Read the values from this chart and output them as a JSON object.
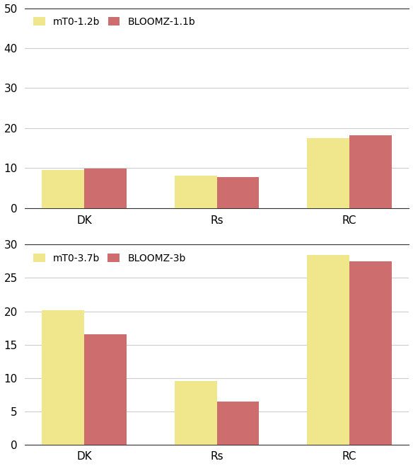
{
  "top_chart": {
    "categories": [
      "DK",
      "Rs",
      "RC"
    ],
    "series1_label": "mT0-1.2b",
    "series2_label": "BLOOMZ-1.1b",
    "series1_values": [
      9.5,
      8.2,
      17.5
    ],
    "series2_values": [
      9.9,
      7.7,
      18.2
    ],
    "ylim": [
      0,
      50
    ],
    "yticks": [
      0,
      10,
      20,
      30,
      40,
      50
    ],
    "color1": "#F0E68C",
    "color2": "#CD6D6D"
  },
  "bottom_chart": {
    "categories": [
      "DK",
      "Rs",
      "RC"
    ],
    "series1_label": "mT0-3.7b",
    "series2_label": "BLOOMZ-3b",
    "series1_values": [
      20.2,
      9.5,
      28.5
    ],
    "series2_values": [
      16.5,
      6.5,
      27.5
    ],
    "ylim": [
      0,
      30
    ],
    "yticks": [
      0,
      5,
      10,
      15,
      20,
      25,
      30
    ],
    "color1": "#F0E68C",
    "color2": "#CD6D6D"
  },
  "bar_width": 0.32,
  "tick_fontsize": 11,
  "legend_fontsize": 10,
  "spine_color": "#333333",
  "grid_color": "#cccccc"
}
